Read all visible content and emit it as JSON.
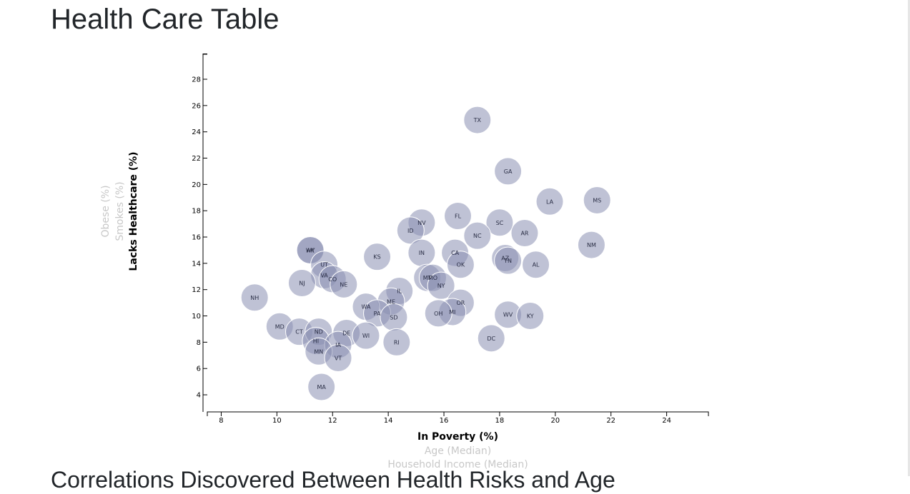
{
  "page": {
    "title": "Health Care Table",
    "section_heading": "Correlations Discovered Between Health Risks and Age"
  },
  "colors": {
    "bubble": "#8a90b3",
    "active_label": "#000000",
    "inactive_label": "#c8c8c8"
  },
  "chart_data": {
    "type": "scatter",
    "xlim": [
      7.5,
      25.5
    ],
    "ylim": [
      2.7,
      29.9
    ],
    "x_ticks": [
      8,
      10,
      12,
      14,
      16,
      18,
      20,
      22,
      24
    ],
    "y_ticks": [
      4,
      6,
      8,
      10,
      12,
      14,
      16,
      18,
      20,
      22,
      24,
      26,
      28
    ],
    "x_axis_labels": [
      {
        "text": "In Poverty (%)",
        "active": true
      },
      {
        "text": "Age (Median)",
        "active": false
      },
      {
        "text": "Household Income (Median)",
        "active": false
      }
    ],
    "y_axis_labels": [
      {
        "text": "Lacks Healthcare (%)",
        "active": true
      },
      {
        "text": "Smokes (%)",
        "active": false
      },
      {
        "text": "Obese (%)",
        "active": false
      }
    ],
    "points": [
      {
        "label": "TX",
        "x": 17.2,
        "y": 24.9
      },
      {
        "label": "GA",
        "x": 18.3,
        "y": 21.0
      },
      {
        "label": "LA",
        "x": 19.8,
        "y": 18.7
      },
      {
        "label": "MS",
        "x": 21.5,
        "y": 18.8
      },
      {
        "label": "FL",
        "x": 16.5,
        "y": 17.6
      },
      {
        "label": "NV",
        "x": 15.2,
        "y": 17.1
      },
      {
        "label": "SC",
        "x": 18.0,
        "y": 17.1
      },
      {
        "label": "ID",
        "x": 14.8,
        "y": 16.5
      },
      {
        "label": "AR",
        "x": 18.9,
        "y": 16.3
      },
      {
        "label": "NC",
        "x": 17.2,
        "y": 16.1
      },
      {
        "label": "NM",
        "x": 21.3,
        "y": 15.4
      },
      {
        "label": "WY",
        "x": 11.2,
        "y": 15.0
      },
      {
        "label": "AK",
        "x": 11.2,
        "y": 15.0
      },
      {
        "label": "IN",
        "x": 15.2,
        "y": 14.8
      },
      {
        "label": "CA",
        "x": 16.4,
        "y": 14.8
      },
      {
        "label": "KS",
        "x": 13.6,
        "y": 14.5
      },
      {
        "label": "AZ",
        "x": 18.2,
        "y": 14.4
      },
      {
        "label": "TN",
        "x": 18.3,
        "y": 14.2
      },
      {
        "label": "UT",
        "x": 11.7,
        "y": 13.9
      },
      {
        "label": "OK",
        "x": 16.6,
        "y": 13.9
      },
      {
        "label": "AL",
        "x": 19.3,
        "y": 13.9
      },
      {
        "label": "VA",
        "x": 11.7,
        "y": 13.1
      },
      {
        "label": "MT",
        "x": 15.4,
        "y": 12.9
      },
      {
        "label": "MO",
        "x": 15.6,
        "y": 12.9
      },
      {
        "label": "CO",
        "x": 12.0,
        "y": 12.8
      },
      {
        "label": "NJ",
        "x": 10.9,
        "y": 12.5
      },
      {
        "label": "NE",
        "x": 12.4,
        "y": 12.4
      },
      {
        "label": "NY",
        "x": 15.9,
        "y": 12.3
      },
      {
        "label": "IL",
        "x": 14.4,
        "y": 11.9
      },
      {
        "label": "NH",
        "x": 9.2,
        "y": 11.4
      },
      {
        "label": "ME",
        "x": 14.1,
        "y": 11.1
      },
      {
        "label": "OR",
        "x": 16.6,
        "y": 11.0
      },
      {
        "label": "WA",
        "x": 13.2,
        "y": 10.7
      },
      {
        "label": "MI",
        "x": 16.3,
        "y": 10.3
      },
      {
        "label": "OH",
        "x": 15.8,
        "y": 10.2
      },
      {
        "label": "PA",
        "x": 13.6,
        "y": 10.2
      },
      {
        "label": "WV",
        "x": 18.3,
        "y": 10.1
      },
      {
        "label": "KY",
        "x": 19.1,
        "y": 10.0
      },
      {
        "label": "SD",
        "x": 14.2,
        "y": 9.9
      },
      {
        "label": "MD",
        "x": 10.1,
        "y": 9.2
      },
      {
        "label": "CT",
        "x": 10.8,
        "y": 8.8
      },
      {
        "label": "ND",
        "x": 11.5,
        "y": 8.8
      },
      {
        "label": "DE",
        "x": 12.5,
        "y": 8.7
      },
      {
        "label": "WI",
        "x": 13.2,
        "y": 8.5
      },
      {
        "label": "DC",
        "x": 17.7,
        "y": 8.3
      },
      {
        "label": "HI",
        "x": 11.4,
        "y": 8.1
      },
      {
        "label": "RI",
        "x": 14.3,
        "y": 8.0
      },
      {
        "label": "IA",
        "x": 12.2,
        "y": 7.8
      },
      {
        "label": "MN",
        "x": 11.5,
        "y": 7.3
      },
      {
        "label": "VT",
        "x": 12.2,
        "y": 6.8
      },
      {
        "label": "MA",
        "x": 11.6,
        "y": 4.6
      }
    ]
  }
}
